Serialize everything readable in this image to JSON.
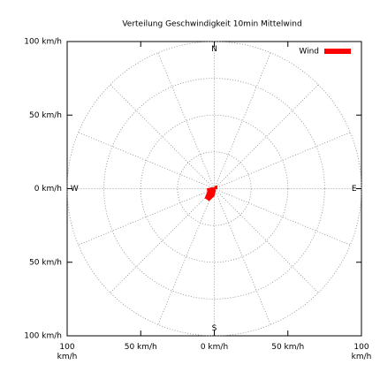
{
  "chart_data": {
    "type": "polar",
    "title": "Verteilung Geschwindigkeit  10min Mittelwind",
    "categories": [
      "N",
      null,
      null,
      null,
      "E",
      null,
      null,
      null,
      "S",
      null,
      null,
      null,
      "W",
      null,
      null,
      null
    ],
    "series": [
      {
        "name": "Wind",
        "color": "#ff0000",
        "values": [
          1,
          2,
          3,
          2,
          2,
          1,
          1,
          2,
          5,
          9,
          9,
          5,
          5,
          2,
          1,
          1
        ]
      }
    ],
    "xlim": [
      -100,
      100
    ],
    "ylim": [
      -100,
      100
    ],
    "xticks": [
      {
        "value": -100,
        "label": "100 km/h"
      },
      {
        "value": -50,
        "label": "50 km/h"
      },
      {
        "value": 0,
        "label": "0 km/h"
      },
      {
        "value": 50,
        "label": "50 km/h"
      },
      {
        "value": 100,
        "label": "100 km/h"
      }
    ],
    "yticks": [
      {
        "value": -100,
        "label": "100 km/h"
      },
      {
        "value": -50,
        "label": "50 km/h"
      },
      {
        "value": 0,
        "label": "0 km/h"
      },
      {
        "value": 50,
        "label": "50 km/h"
      },
      {
        "value": 100,
        "label": "100 km/h"
      }
    ],
    "rticks": [
      25,
      50,
      75,
      100
    ],
    "grid": true,
    "legend": "top-right"
  }
}
